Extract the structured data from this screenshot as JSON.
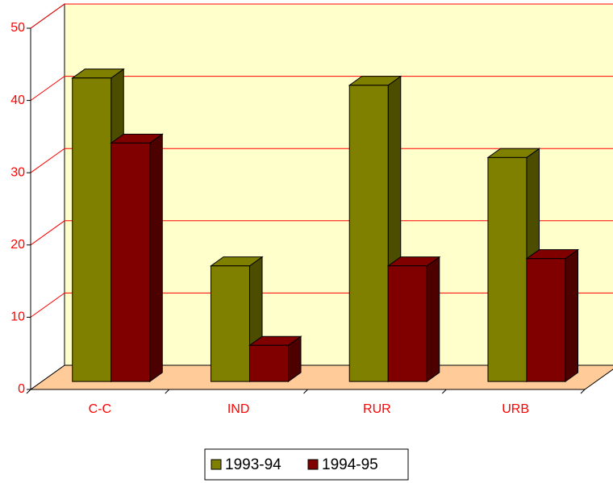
{
  "chart_data": {
    "type": "bar3d",
    "categories": [
      "C-C",
      "IND",
      "RUR",
      "URB"
    ],
    "series": [
      {
        "name": "1993-94",
        "color": "#808000",
        "values": [
          42,
          16,
          41,
          31
        ]
      },
      {
        "name": "1994-95",
        "color": "#800000",
        "values": [
          33,
          5,
          16,
          17
        ]
      }
    ],
    "ylim": [
      0,
      50
    ],
    "yticks": [
      0,
      10,
      20,
      30,
      40,
      50
    ],
    "grid": true
  }
}
